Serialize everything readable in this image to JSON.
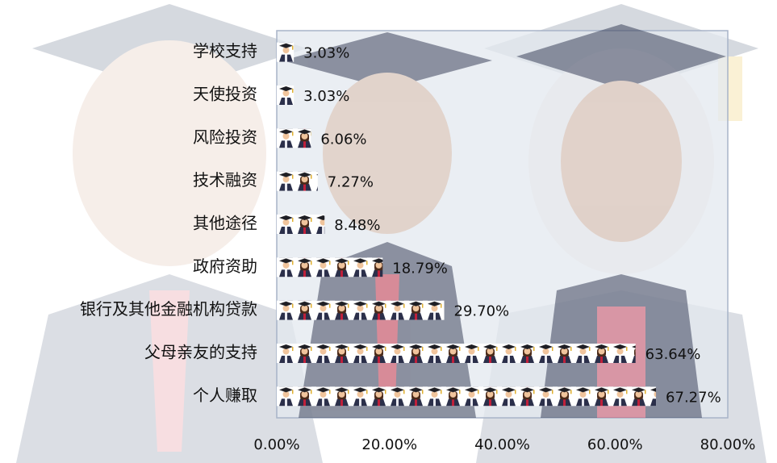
{
  "chart_data": {
    "type": "pictograph-bar",
    "categories": [
      "学校支持",
      "天使投资",
      "风险投资",
      "技术融资",
      "其他途径",
      "政府资助",
      "银行及其他金融机构贷款",
      "父母亲友的支持",
      "个人赚取"
    ],
    "values": [
      3.03,
      3.03,
      6.06,
      7.27,
      8.48,
      18.79,
      29.7,
      63.64,
      67.27
    ],
    "value_labels": [
      "3.03%",
      "3.03%",
      "6.06%",
      "7.27%",
      "8.48%",
      "18.79%",
      "29.70%",
      "63.64%",
      "67.27%"
    ],
    "xlim": [
      0,
      80
    ],
    "xticks": [
      {
        "value": 0,
        "label": "0.00%"
      },
      {
        "value": 20,
        "label": "20.00%"
      },
      {
        "value": 40,
        "label": "40.00%"
      },
      {
        "value": 60,
        "label": "60.00%"
      },
      {
        "value": 80,
        "label": "80.00%"
      }
    ]
  }
}
